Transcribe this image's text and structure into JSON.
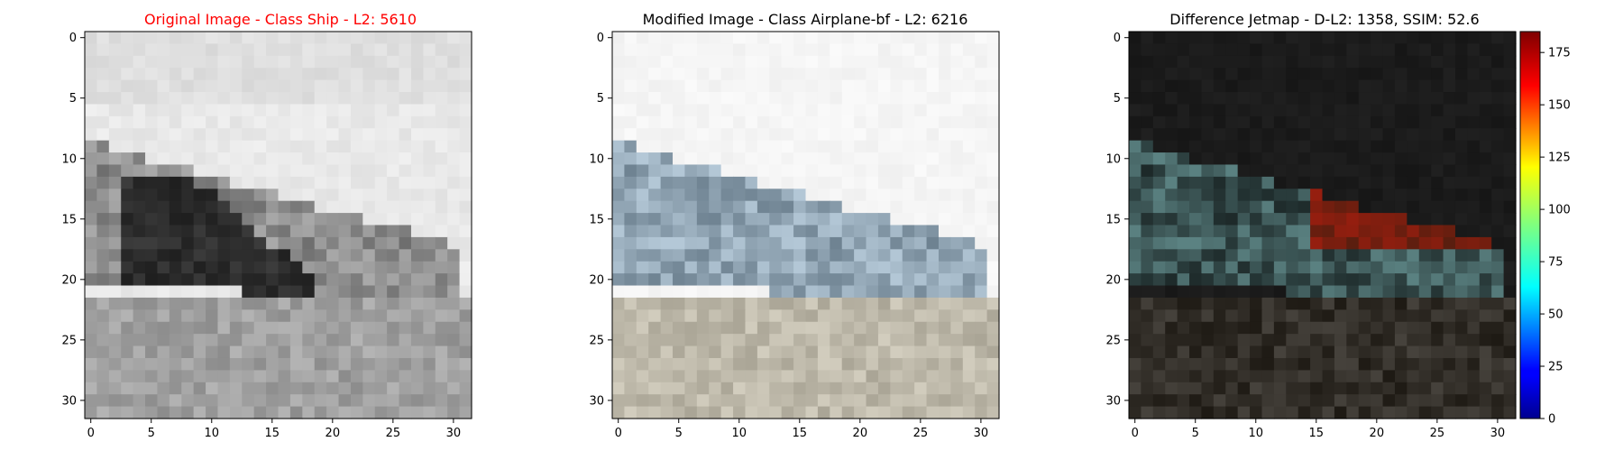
{
  "figure": {
    "panels": [
      {
        "title": "Original Image - Class Ship - L2: 5610",
        "title_color": "#ff0000",
        "image_name": "grayscale airplane on ground"
      },
      {
        "title": "Modified Image - Class Airplane-bf - L2: 6216",
        "title_color": "#000000",
        "image_name": "color-tinted airplane on ground"
      },
      {
        "title": "Difference Jetmap - D-L2: 1358, SSIM: 52.6",
        "title_color": "#000000",
        "image_name": "dark difference heatmap"
      }
    ],
    "colorbar": {
      "colormap": "jet",
      "range": [
        0,
        185
      ],
      "ticks": [
        "0",
        "25",
        "50",
        "75",
        "100",
        "125",
        "150",
        "175"
      ]
    }
  },
  "chart_data": [
    {
      "type": "heatmap",
      "title": "Original Image - Class Ship - L2: 5610",
      "xlim": [
        -0.5,
        31.5
      ],
      "ylim": [
        31.5,
        -0.5
      ],
      "x_ticks": [
        "0",
        "5",
        "10",
        "15",
        "20",
        "25",
        "30"
      ],
      "y_ticks": [
        "0",
        "5",
        "10",
        "15",
        "20",
        "25",
        "30"
      ],
      "grid": false
    },
    {
      "type": "heatmap",
      "title": "Modified Image - Class Airplane-bf - L2: 6216",
      "xlim": [
        -0.5,
        31.5
      ],
      "ylim": [
        31.5,
        -0.5
      ],
      "x_ticks": [
        "0",
        "5",
        "10",
        "15",
        "20",
        "25",
        "30"
      ],
      "y_ticks": [
        "0",
        "5",
        "10",
        "15",
        "20",
        "25",
        "30"
      ],
      "grid": false
    },
    {
      "type": "heatmap",
      "title": "Difference Jetmap - D-L2: 1358, SSIM: 52.6",
      "xlim": [
        -0.5,
        31.5
      ],
      "ylim": [
        31.5,
        -0.5
      ],
      "x_ticks": [
        "0",
        "5",
        "10",
        "15",
        "20",
        "25",
        "30"
      ],
      "y_ticks": [
        "0",
        "5",
        "10",
        "15",
        "20",
        "25",
        "30"
      ],
      "grid": false
    }
  ]
}
